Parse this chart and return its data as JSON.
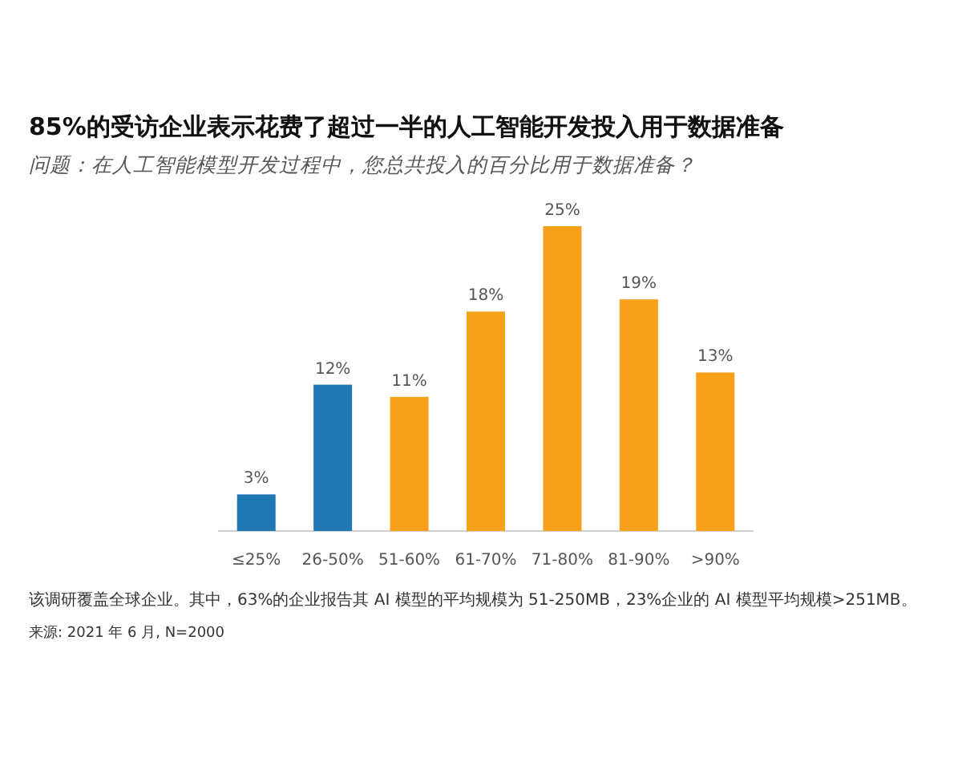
{
  "chart_data": {
    "type": "bar",
    "title": "85%的受访企业表示花费了超过一半的人工智能开发投入用于数据准备",
    "subtitle": "问题：在人工智能模型开发过程中，您总共投入的百分比用于数据准备？",
    "categories": [
      "≤25%",
      "26-50%",
      "51-60%",
      "61-70%",
      "71-80%",
      "81-90%",
      ">90%"
    ],
    "values": [
      3,
      12,
      11,
      18,
      25,
      19,
      13
    ],
    "colors": [
      "#1f77b4",
      "#1f77b4",
      "#f7a11a",
      "#f7a11a",
      "#f7a11a",
      "#f7a11a",
      "#f7a11a"
    ],
    "value_labels": [
      "3%",
      "12%",
      "11%",
      "18%",
      "25%",
      "19%",
      "13%"
    ],
    "annotations": [
      "该调研覆盖全球企业。其中，63%的企业报告其 AI 模型的平均规模为 51-250MB，23%企业的 AI 模型平均规模>251MB。",
      "来源: 2021 年 6 月, N=2000"
    ]
  }
}
